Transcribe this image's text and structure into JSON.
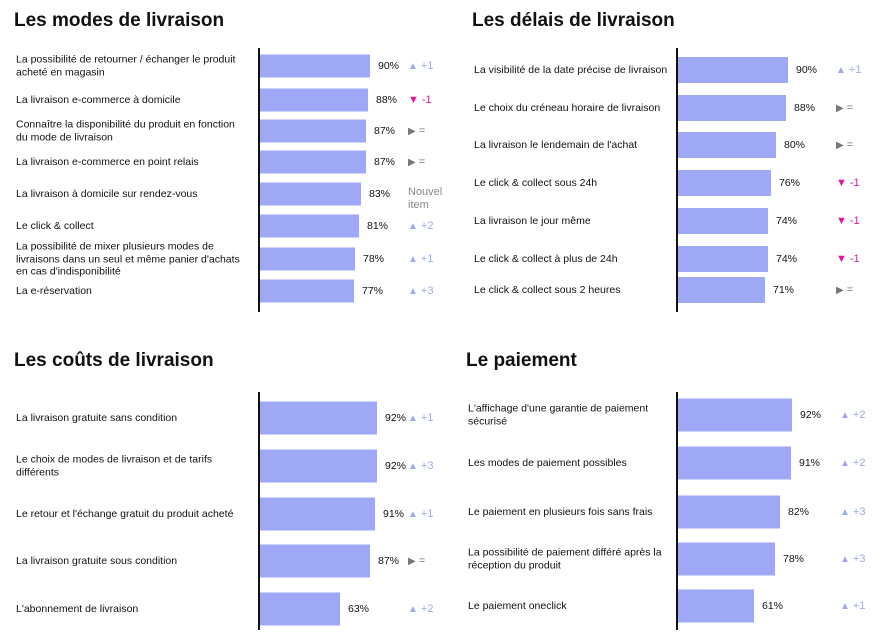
{
  "chart_data": [
    {
      "type": "bar",
      "title": "Les modes de livraison",
      "categories": [
        "La possibilité de retourner / échanger le produit acheté en magasin",
        "La livraison e-commerce à domicile",
        "Connaître la disponibilité du produit en fonction du mode de livraison",
        "La livraison e-commerce en point relais",
        "La livraison à domicile sur rendez-vous",
        "Le click & collect",
        "La possibilité de mixer plusieurs modes de livraisons dans un seul et même panier d'achats en cas d'indisponibilité",
        "La e-réservation"
      ],
      "values": [
        90,
        88,
        87,
        87,
        83,
        81,
        78,
        77
      ],
      "value_labels": [
        "90%",
        "88%",
        "87%",
        "87%",
        "83%",
        "81%",
        "78%",
        "77%"
      ],
      "deltas": [
        {
          "dir": "up",
          "symbol": "▲",
          "text": "+1"
        },
        {
          "dir": "down",
          "symbol": "▼",
          "text": "-1"
        },
        {
          "dir": "eq",
          "symbol": "▶",
          "text": "="
        },
        {
          "dir": "eq",
          "symbol": "▶",
          "text": "="
        },
        {
          "dir": "new",
          "symbol": "",
          "text": "Nouvel item"
        },
        {
          "dir": "up",
          "symbol": "▲",
          "text": "+2"
        },
        {
          "dir": "up",
          "symbol": "▲",
          "text": "+1"
        },
        {
          "dir": "up",
          "symbol": "▲",
          "text": "+3"
        }
      ],
      "xlim": [
        0,
        100
      ],
      "colors": {
        "bar": "#9ea8f5",
        "up": "#9ea8f5",
        "down": "#e5169a",
        "eq": "#777777"
      }
    },
    {
      "type": "bar",
      "title": "Les délais de livraison",
      "categories": [
        "La visibilité de la date précise de livraison",
        "Le choix du créneau horaire de livraison",
        "La livraison le lendemain de l'achat",
        "Le click & collect sous 24h",
        "La livraison le jour même",
        "Le click & collect à plus de 24h",
        "Le click & collect sous 2 heures"
      ],
      "values": [
        90,
        88,
        80,
        76,
        74,
        74,
        71
      ],
      "value_labels": [
        "90%",
        "88%",
        "80%",
        "76%",
        "74%",
        "74%",
        "71%"
      ],
      "deltas": [
        {
          "dir": "up",
          "symbol": "▲",
          "text": "+1"
        },
        {
          "dir": "eq",
          "symbol": "▶",
          "text": "="
        },
        {
          "dir": "eq",
          "symbol": "▶",
          "text": "="
        },
        {
          "dir": "down",
          "symbol": "▼",
          "text": "-1"
        },
        {
          "dir": "down",
          "symbol": "▼",
          "text": "-1"
        },
        {
          "dir": "down",
          "symbol": "▼",
          "text": "-1"
        },
        {
          "dir": "eq",
          "symbol": "▶",
          "text": "="
        }
      ],
      "xlim": [
        0,
        100
      ]
    },
    {
      "type": "bar",
      "title": "Les coûts de livraison",
      "categories": [
        "La livraison gratuite sans condition",
        "Le choix de modes de livraison et de tarifs différents",
        "Le retour et l'échange gratuit du produit acheté",
        "La livraison gratuite sous condition",
        "L'abonnement de livraison"
      ],
      "values": [
        92,
        92,
        91,
        87,
        63
      ],
      "value_labels": [
        "92%",
        "92%",
        "91%",
        "87%",
        "63%"
      ],
      "deltas": [
        {
          "dir": "up",
          "symbol": "▲",
          "text": "+1"
        },
        {
          "dir": "up",
          "symbol": "▲",
          "text": "+3"
        },
        {
          "dir": "up",
          "symbol": "▲",
          "text": "+1"
        },
        {
          "dir": "eq",
          "symbol": "▶",
          "text": "="
        },
        {
          "dir": "up",
          "symbol": "▲",
          "text": "+2"
        }
      ],
      "xlim": [
        0,
        100
      ]
    },
    {
      "type": "bar",
      "title": "Le paiement",
      "categories": [
        "L'affichage d'une garantie de paiement sécurisé",
        "Les modes de paiement possibles",
        "Le paiement en plusieurs fois sans frais",
        "La possibilité de paiement différé après la réception du produit",
        "Le paiement oneclick"
      ],
      "values": [
        92,
        91,
        82,
        78,
        61
      ],
      "value_labels": [
        "92%",
        "91%",
        "82%",
        "78%",
        "61%"
      ],
      "deltas": [
        {
          "dir": "up",
          "symbol": "▲",
          "text": "+2"
        },
        {
          "dir": "up",
          "symbol": "▲",
          "text": "+2"
        },
        {
          "dir": "up",
          "symbol": "▲",
          "text": "+3"
        },
        {
          "dir": "up",
          "symbol": "▲",
          "text": "+3"
        },
        {
          "dir": "up",
          "symbol": "▲",
          "text": "+1"
        }
      ],
      "xlim": [
        0,
        100
      ]
    }
  ]
}
